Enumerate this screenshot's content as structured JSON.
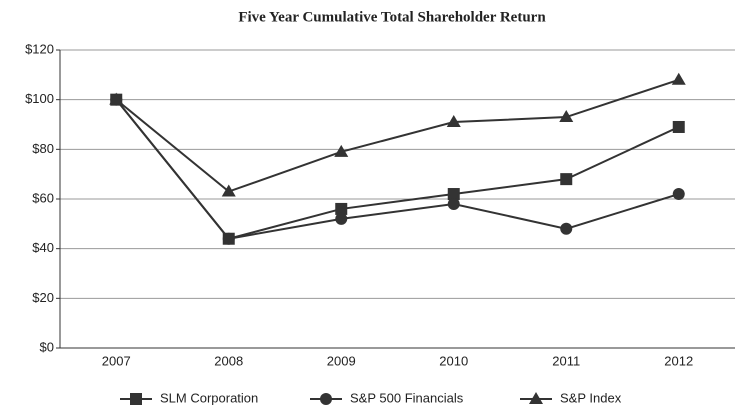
{
  "chart_data": {
    "type": "line",
    "title": "Five Year Cumulative Total Shareholder Return",
    "categories": [
      "2007",
      "2008",
      "2009",
      "2010",
      "2011",
      "2012"
    ],
    "series": [
      {
        "name": "SLM Corporation",
        "color": "#333333",
        "marker": "square",
        "values": [
          100,
          44,
          56,
          62,
          68,
          89
        ]
      },
      {
        "name": "S&P 500 Financials",
        "color": "#333333",
        "marker": "circle",
        "values": [
          100,
          44,
          52,
          58,
          48,
          62
        ]
      },
      {
        "name": "S&P Index",
        "color": "#333333",
        "marker": "triangle",
        "values": [
          100,
          63,
          79,
          91,
          93,
          108
        ]
      }
    ],
    "ylim": [
      0,
      120
    ],
    "yticks": [
      {
        "value": 0,
        "label": "$0"
      },
      {
        "value": 20,
        "label": "$20"
      },
      {
        "value": 40,
        "label": "$40"
      },
      {
        "value": 60,
        "label": "$60"
      },
      {
        "value": 80,
        "label": "$80"
      },
      {
        "value": 100,
        "label": "$100"
      },
      {
        "value": 120,
        "label": "$120"
      }
    ],
    "grid": true,
    "legend": "bottom"
  }
}
